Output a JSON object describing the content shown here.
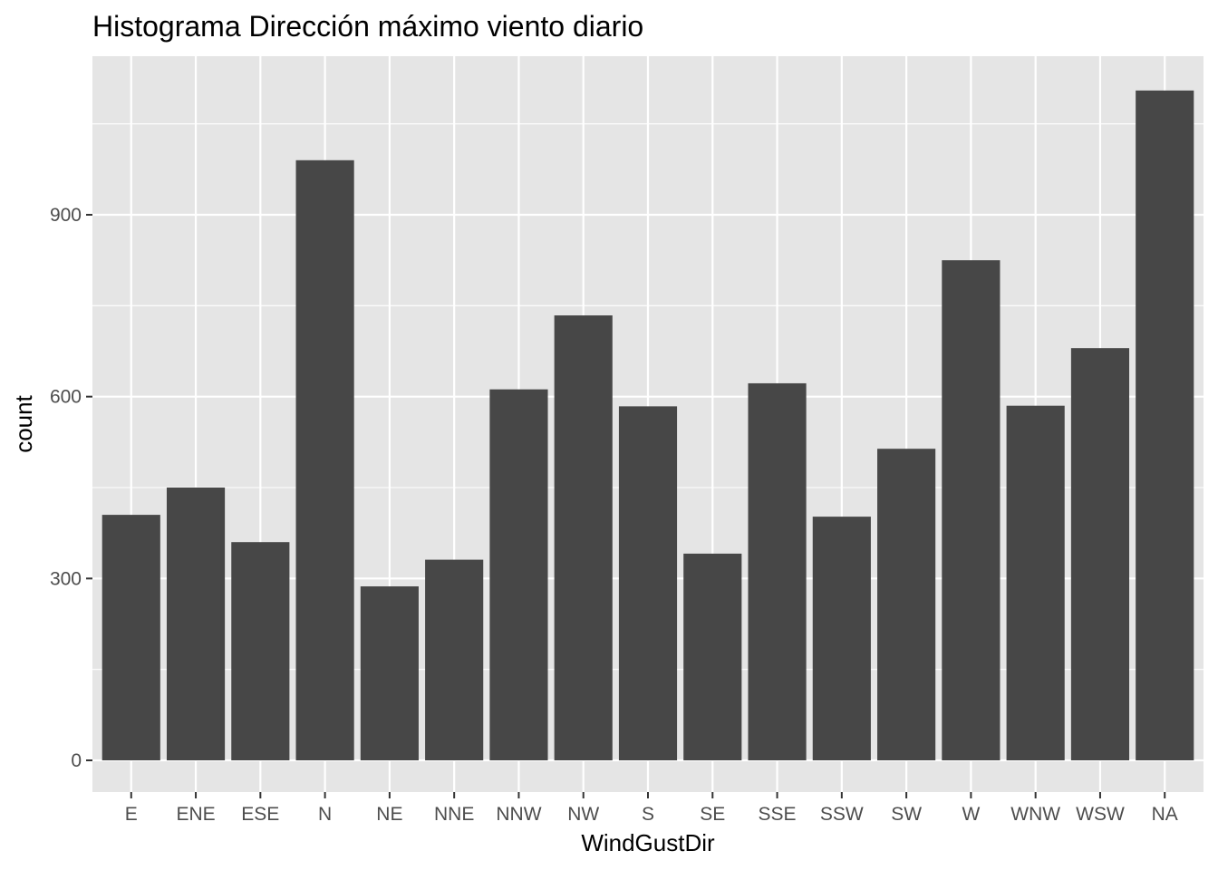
{
  "chart_data": {
    "type": "bar",
    "title": "Histograma Dirección máximo viento diario",
    "xlabel": "WindGustDir",
    "ylabel": "count",
    "categories": [
      "E",
      "ENE",
      "ESE",
      "N",
      "NE",
      "NNE",
      "NNW",
      "NW",
      "S",
      "SE",
      "SSE",
      "SSW",
      "SW",
      "W",
      "WNW",
      "WSW",
      "NA"
    ],
    "values": [
      405,
      450,
      360,
      990,
      287,
      331,
      612,
      734,
      584,
      341,
      622,
      402,
      514,
      825,
      585,
      680,
      1105
    ],
    "ylim": [
      0,
      1105
    ],
    "yticks": [
      0,
      300,
      600,
      900
    ],
    "grid": true,
    "legend": "none",
    "colors": {
      "bar": "#474747",
      "panel": "#e5e5e5",
      "grid": "#ffffff",
      "tick_text": "#4d4d4d",
      "tick_mark": "#333333"
    }
  }
}
